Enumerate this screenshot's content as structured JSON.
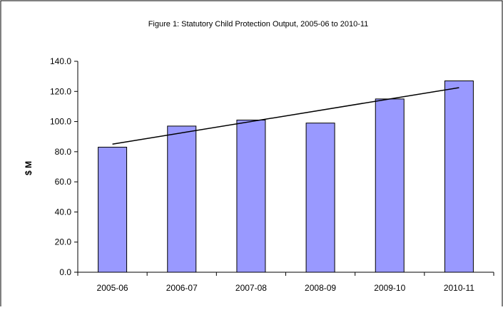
{
  "chart_data": {
    "type": "bar",
    "title": "Figure 1: Statutory Child Protection Output, 2005-06 to 2010-11",
    "xlabel": "",
    "ylabel": "$ M",
    "categories": [
      "2005-06",
      "2006-07",
      "2007-08",
      "2008-09",
      "2009-10",
      "2010-11"
    ],
    "series": [
      {
        "values": [
          83.0,
          97.0,
          101.0,
          99.0,
          115.0,
          127.0
        ]
      }
    ],
    "trendline": {
      "type": "linear",
      "start_value": 85.0,
      "end_value": 122.5
    },
    "ylim": [
      0,
      140
    ],
    "yticks": [
      "0.0",
      "20.0",
      "40.0",
      "60.0",
      "80.0",
      "100.0",
      "120.0",
      "140.0"
    ],
    "grid": false,
    "legend": "none",
    "colors": {
      "bar_fill": "#9999ff",
      "bar_stroke": "#000000",
      "trend": "#000000",
      "frame": "#000000"
    }
  }
}
